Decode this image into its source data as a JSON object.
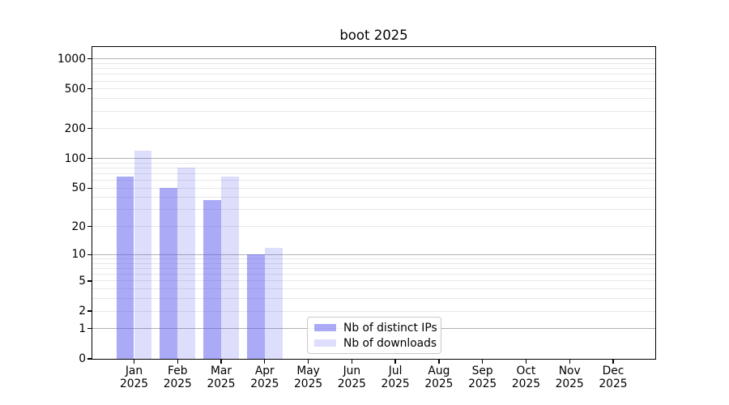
{
  "chart_data": {
    "type": "bar",
    "title": "boot 2025",
    "months": [
      "Jan",
      "Feb",
      "Mar",
      "Apr",
      "May",
      "Jun",
      "Jul",
      "Aug",
      "Sep",
      "Oct",
      "Nov",
      "Dec"
    ],
    "year": "2025",
    "categories": [
      "Jan 2025",
      "Feb 2025",
      "Mar 2025",
      "Apr 2025",
      "May 2025",
      "Jun 2025",
      "Jul 2025",
      "Aug 2025",
      "Sep 2025",
      "Oct 2025",
      "Nov 2025",
      "Dec 2025"
    ],
    "series": [
      {
        "name": "Nb of distinct IPs",
        "fill": "rgba(85,85,238,0.5)",
        "values": [
          65,
          50,
          38,
          10,
          0,
          0,
          0,
          0,
          0,
          0,
          0,
          0
        ]
      },
      {
        "name": "Nb of downloads",
        "fill": "rgba(85,85,238,0.2)",
        "values": [
          120,
          80,
          65,
          12,
          0,
          0,
          0,
          0,
          0,
          0,
          0,
          0
        ]
      }
    ],
    "y_axis": {
      "scale": "symlog",
      "ticks": [
        1000,
        500,
        200,
        100,
        50,
        20,
        10,
        5,
        2,
        1,
        0
      ],
      "grid_major": [
        1,
        10,
        100,
        1000
      ],
      "grid_minor": [
        2,
        3,
        4,
        5,
        6,
        7,
        8,
        9,
        20,
        30,
        40,
        50,
        60,
        70,
        80,
        90,
        200,
        300,
        400,
        500,
        600,
        700,
        800,
        900
      ],
      "range_top": 1340
    },
    "colors": {
      "grid_major": "#b1b1b1",
      "grid_minor": "#e7e7e7",
      "axis": "#000000"
    },
    "legend_entries": [
      "Nb of distinct IPs",
      "Nb of downloads"
    ]
  }
}
